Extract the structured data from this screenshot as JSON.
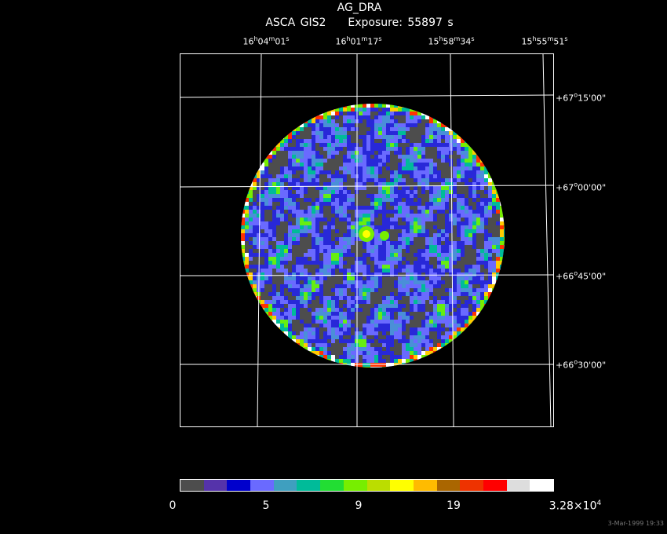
{
  "header": {
    "object": "AG_DRA",
    "instrument": "ASCA GIS2",
    "exposure": "Exposure: 55897 s"
  },
  "ra_ticks": [
    {
      "h": "16",
      "m": "04",
      "s": "01"
    },
    {
      "h": "16",
      "m": "01",
      "s": "17"
    },
    {
      "h": "15",
      "m": "58",
      "s": "34"
    },
    {
      "h": "15",
      "m": "55",
      "s": "51"
    }
  ],
  "dec_ticks": [
    {
      "sign": "+",
      "deg": "67",
      "min": "15",
      "sec": "00"
    },
    {
      "sign": "+",
      "deg": "67",
      "min": "00",
      "sec": "00"
    },
    {
      "sign": "+",
      "deg": "66",
      "min": "45",
      "sec": "00"
    },
    {
      "sign": "+",
      "deg": "66",
      "min": "30",
      "sec": "00"
    }
  ],
  "colorbar": {
    "labels": [
      "0",
      "5",
      "9",
      "19"
    ],
    "max_label_base": "3.28×10",
    "max_label_exp": "4",
    "colors": [
      "#4d4d4d",
      "#5533aa",
      "#0000cc",
      "#6a6aff",
      "#3f9fbf",
      "#00bb99",
      "#22dd33",
      "#77ee00",
      "#bbdd00",
      "#ffff00",
      "#ffbb00",
      "#aa6600",
      "#ee3300",
      "#ff0000",
      "#dddddd",
      "#ffffff"
    ]
  },
  "timestamp": "3-Mar-1999 19:33"
}
